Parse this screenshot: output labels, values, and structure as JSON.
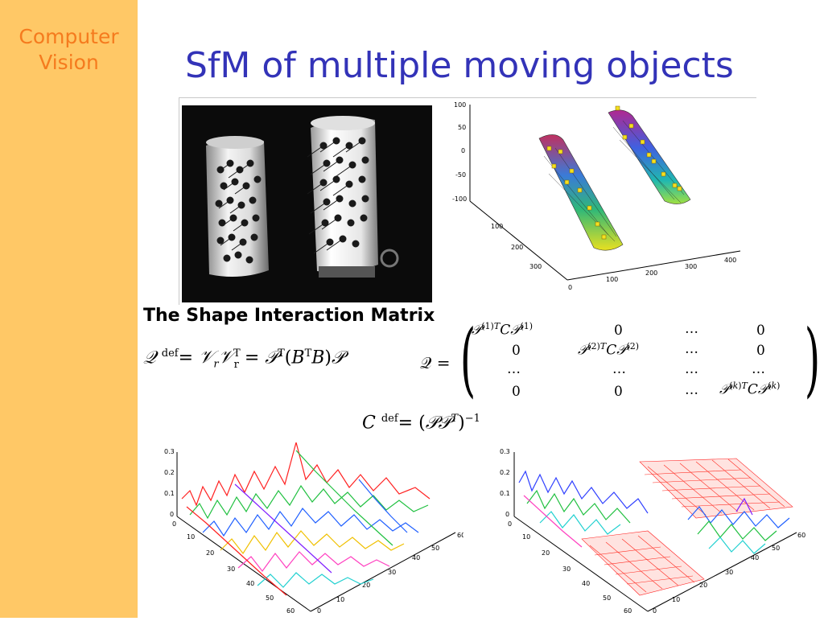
{
  "sidebar": {
    "course_line1": "Computer",
    "course_line2": "Vision"
  },
  "slide": {
    "title": "SfM of multiple moving objects"
  },
  "section": {
    "heading": "The Shape Interaction Matrix"
  },
  "plot3d": {
    "z_ticks": [
      "100",
      "50",
      "0",
      "-50",
      "-100"
    ],
    "y_ticks": [
      "100",
      "200",
      "300"
    ],
    "x_ticks": [
      "0",
      "100",
      "200",
      "300",
      "400"
    ]
  },
  "mesh": {
    "z_ticks": [
      "0.3",
      "0.2",
      "0.1",
      "0"
    ],
    "y_ticks": [
      "0",
      "10",
      "20",
      "30",
      "40",
      "50",
      "60"
    ],
    "x_ticks": [
      "0",
      "10",
      "20",
      "30",
      "40",
      "50",
      "60"
    ]
  },
  "matrix": {
    "label": "𝒬 =",
    "dots": "…",
    "zero": "0"
  },
  "colors": {
    "sidebar": "#ffc866",
    "course_title": "#f57b1e",
    "slide_title": "#3333b8"
  }
}
